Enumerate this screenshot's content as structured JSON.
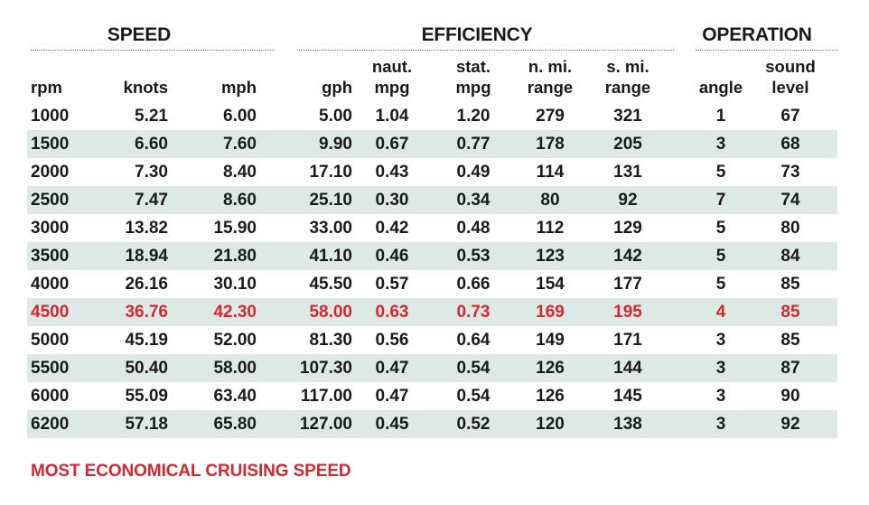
{
  "groups": {
    "speed": "SPEED",
    "efficiency": "EFFICIENCY",
    "operation": "OPERATION"
  },
  "columns": {
    "rpm": [
      "",
      "rpm"
    ],
    "knots": [
      "",
      "knots"
    ],
    "mph": [
      "",
      "mph"
    ],
    "gph": [
      "",
      "gph"
    ],
    "naut_mpg": [
      "naut.",
      "mpg"
    ],
    "stat_mpg": [
      "stat.",
      "mpg"
    ],
    "n_mi_range": [
      "n. mi.",
      "range"
    ],
    "s_mi_range": [
      "s. mi.",
      "range"
    ],
    "angle": [
      "",
      "angle"
    ],
    "sound_level": [
      "sound",
      "level"
    ]
  },
  "rows": [
    [
      "1000",
      "5.21",
      "6.00",
      "5.00",
      "1.04",
      "1.20",
      "279",
      "321",
      "1",
      "67"
    ],
    [
      "1500",
      "6.60",
      "7.60",
      "9.90",
      "0.67",
      "0.77",
      "178",
      "205",
      "3",
      "68"
    ],
    [
      "2000",
      "7.30",
      "8.40",
      "17.10",
      "0.43",
      "0.49",
      "114",
      "131",
      "5",
      "73"
    ],
    [
      "2500",
      "7.47",
      "8.60",
      "25.10",
      "0.30",
      "0.34",
      "80",
      "92",
      "7",
      "74"
    ],
    [
      "3000",
      "13.82",
      "15.90",
      "33.00",
      "0.42",
      "0.48",
      "112",
      "129",
      "5",
      "80"
    ],
    [
      "3500",
      "18.94",
      "21.80",
      "41.10",
      "0.46",
      "0.53",
      "123",
      "142",
      "5",
      "84"
    ],
    [
      "4000",
      "26.16",
      "30.10",
      "45.50",
      "0.57",
      "0.66",
      "154",
      "177",
      "5",
      "85"
    ],
    [
      "4500",
      "36.76",
      "42.30",
      "58.00",
      "0.63",
      "0.73",
      "169",
      "195",
      "4",
      "85"
    ],
    [
      "5000",
      "45.19",
      "52.00",
      "81.30",
      "0.56",
      "0.64",
      "149",
      "171",
      "3",
      "85"
    ],
    [
      "5500",
      "50.40",
      "58.00",
      "107.30",
      "0.47",
      "0.54",
      "126",
      "144",
      "3",
      "87"
    ],
    [
      "6000",
      "55.09",
      "63.40",
      "117.00",
      "0.47",
      "0.54",
      "126",
      "145",
      "3",
      "90"
    ],
    [
      "6200",
      "57.18",
      "65.80",
      "127.00",
      "0.45",
      "0.52",
      "120",
      "138",
      "3",
      "92"
    ]
  ],
  "highlight_row_index": 7,
  "footer": "MOST ECONOMICAL CRUISING SPEED",
  "colors": {
    "highlight": "#d9252e",
    "row_shade": "#dce9e4",
    "text": "#1a1a1a"
  }
}
